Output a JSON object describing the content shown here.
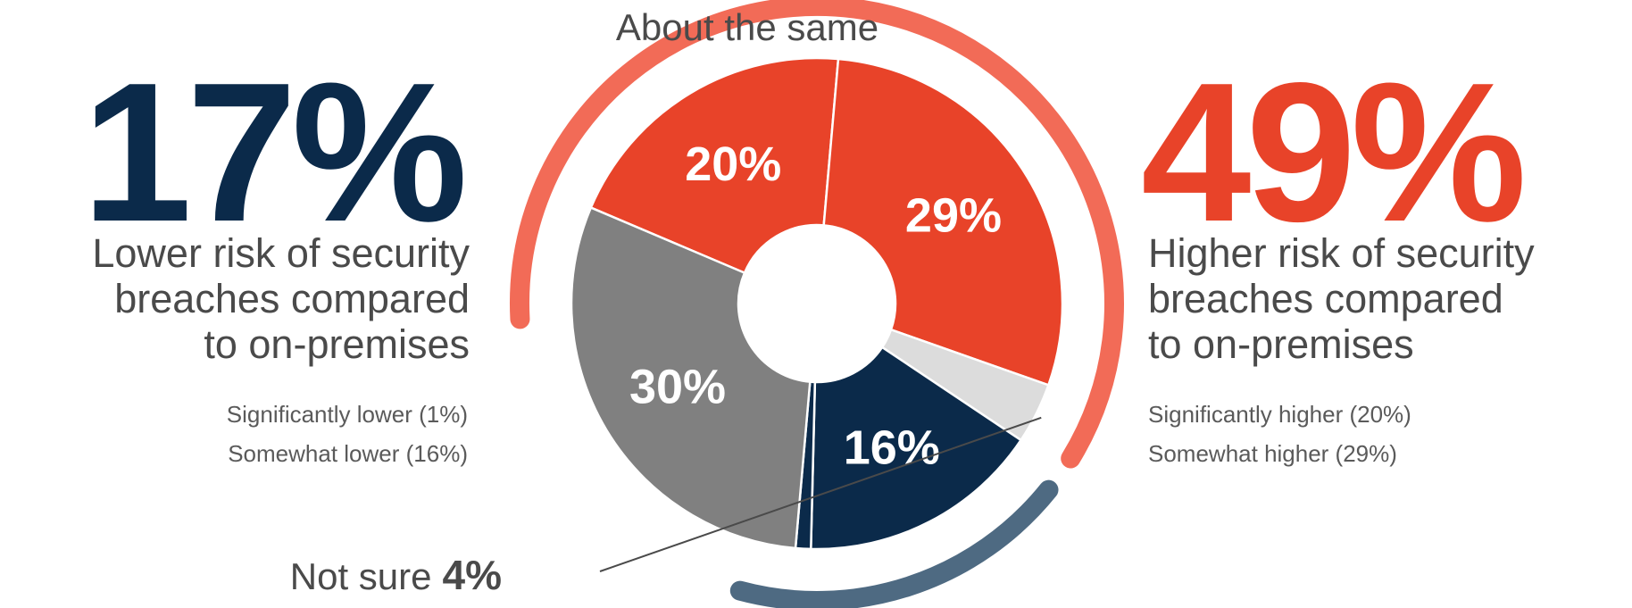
{
  "colors": {
    "navy": "#0B2A4A",
    "red": "#E84329",
    "gray": "#808080",
    "light_gray": "#DCDCDC",
    "arc_left": "#4E6A82",
    "arc_right": "#F26B57",
    "text": "#4a4a4a"
  },
  "left": {
    "headline": "17%",
    "desc_lines": [
      "Lower risk of security",
      "breaches compared",
      "to on-premises"
    ],
    "sub_lines": [
      "Significantly lower (1%)",
      "Somewhat lower (16%)"
    ]
  },
  "right": {
    "headline": "49%",
    "desc_lines": [
      "Higher risk of security",
      "breaches compared",
      "to on-premises"
    ],
    "sub_lines": [
      "Significantly higher (20%)",
      "Somewhat higher (29%)"
    ]
  },
  "chart_data": {
    "type": "pie",
    "title": "",
    "slices": [
      {
        "key": "sig_higher",
        "value": 20,
        "label": "20%",
        "color": "#E84329"
      },
      {
        "key": "some_higher",
        "value": 29,
        "label": "29%",
        "color": "#E84329"
      },
      {
        "key": "not_sure",
        "value": 4,
        "label": "",
        "color": "#DCDCDC"
      },
      {
        "key": "some_lower",
        "value": 16,
        "label": "16%",
        "color": "#0B2A4A"
      },
      {
        "key": "sig_lower",
        "value": 1,
        "label": "",
        "color": "#0B2A4A"
      },
      {
        "key": "same",
        "value": 30,
        "label": "30%",
        "color": "#808080"
      }
    ],
    "callouts": {
      "about_same": "About the same",
      "not_sure_text": "Not sure",
      "not_sure_value": "4%"
    }
  }
}
